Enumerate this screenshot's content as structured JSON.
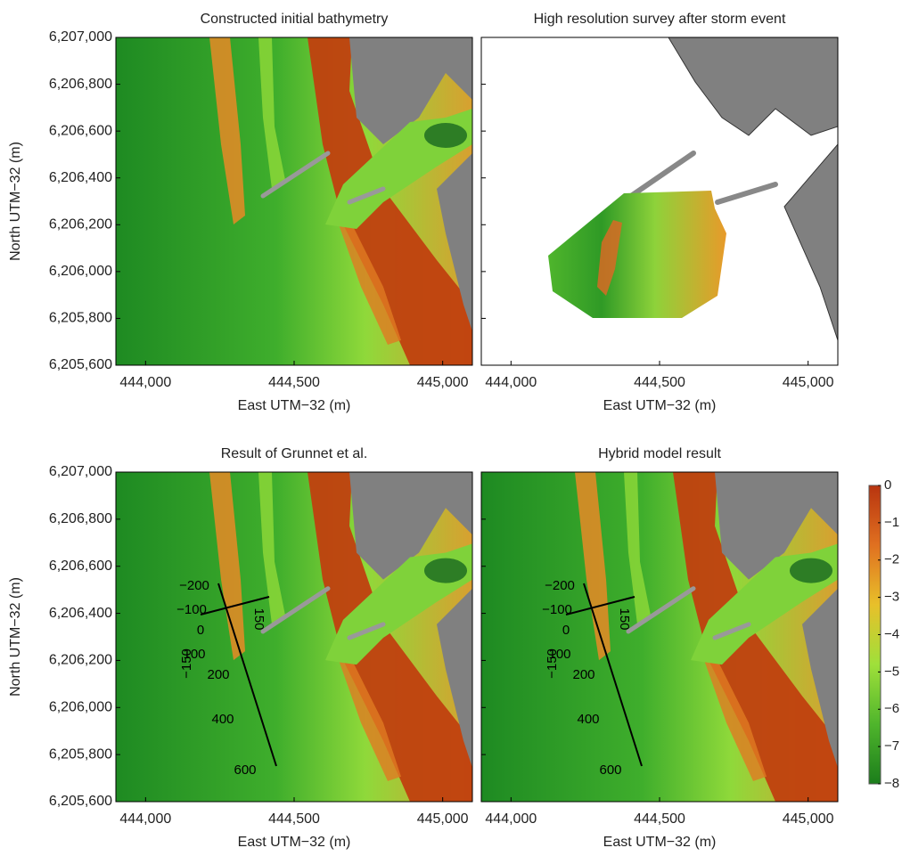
{
  "chart_data": [
    {
      "type": "map",
      "title": "Constructed initial bathymetry",
      "xlabel": "East UTM−32  (m)",
      "ylabel": "North UTM−32  (m)",
      "xlim": [
        443900,
        445100
      ],
      "ylim": [
        6205600,
        6207000
      ],
      "xticks": [
        {
          "value": 444000,
          "label": "444,000"
        },
        {
          "value": 444500,
          "label": "444,500"
        },
        {
          "value": 445000,
          "label": "445,000"
        }
      ],
      "yticks": [
        {
          "value": 6205600,
          "label": "6,205,600"
        },
        {
          "value": 6205800,
          "label": "6,205,800"
        },
        {
          "value": 6206000,
          "label": "6,206,000"
        },
        {
          "value": 6206200,
          "label": "6,206,200"
        },
        {
          "value": 6206400,
          "label": "6,206,400"
        },
        {
          "value": 6206600,
          "label": "6,206,600"
        },
        {
          "value": 6206800,
          "label": "6,206,800"
        },
        {
          "value": 6207000,
          "label": "6,207,000"
        }
      ]
    },
    {
      "type": "survey",
      "title": "High resolution survey after storm event",
      "xlabel": "East UTM−32  (m)",
      "xlim": [
        443900,
        445100
      ],
      "ylim": [
        6205600,
        6207000
      ],
      "xticks": [
        {
          "value": 444000,
          "label": "444,000"
        },
        {
          "value": 444500,
          "label": "444,500"
        },
        {
          "value": 445000,
          "label": "445,000"
        }
      ],
      "yticks": [
        6205600,
        6205800,
        6206000,
        6206200,
        6206400,
        6206600,
        6206800,
        6207000
      ]
    },
    {
      "type": "map",
      "title": "Result of Grunnet et al.",
      "xlabel": "East UTM−32  (m)",
      "ylabel": "North UTM−32  (m)",
      "xlim": [
        443900,
        445100
      ],
      "ylim": [
        6205600,
        6207000
      ],
      "xticks": [
        {
          "value": 444000,
          "label": "444,000"
        },
        {
          "value": 444500,
          "label": "444,500"
        },
        {
          "value": 445000,
          "label": "445,000"
        }
      ],
      "yticks": [
        {
          "value": 6205600,
          "label": "6,205,600"
        },
        {
          "value": 6205800,
          "label": "6,205,800"
        },
        {
          "value": 6206000,
          "label": "6,206,000"
        },
        {
          "value": 6206200,
          "label": "6,206,200"
        },
        {
          "value": 6206400,
          "label": "6,206,400"
        },
        {
          "value": 6206600,
          "label": "6,206,600"
        },
        {
          "value": 6206800,
          "label": "6,206,800"
        },
        {
          "value": 6207000,
          "label": "6,207,000"
        }
      ],
      "annotations": [
        "−200",
        "−100",
        "0",
        "100",
        "−150",
        "150",
        "200",
        "400",
        "600"
      ]
    },
    {
      "type": "map",
      "title": "Hybrid model result",
      "xlabel": "East UTM−32  (m)",
      "xlim": [
        443900,
        445100
      ],
      "ylim": [
        6205600,
        6207000
      ],
      "xticks": [
        {
          "value": 444000,
          "label": "444,000"
        },
        {
          "value": 444500,
          "label": "444,500"
        },
        {
          "value": 445000,
          "label": "445,000"
        }
      ],
      "yticks": [
        6205600,
        6205800,
        6206000,
        6206200,
        6206400,
        6206600,
        6206800,
        6207000
      ],
      "annotations": [
        "−200",
        "−100",
        "0",
        "100",
        "−150",
        "150",
        "200",
        "400",
        "600"
      ]
    }
  ],
  "colorbar": {
    "lim": [
      -8,
      0
    ],
    "colors": [
      "#1b7d1b",
      "#4fb52c",
      "#9fe03a",
      "#e8c02a",
      "#e07020",
      "#b8340f"
    ],
    "ticks": [
      {
        "value": 0,
        "label": "0"
      },
      {
        "value": -1,
        "label": "−1"
      },
      {
        "value": -2,
        "label": "−2"
      },
      {
        "value": -3,
        "label": "−3"
      },
      {
        "value": -4,
        "label": "−4"
      },
      {
        "value": -5,
        "label": "−5"
      },
      {
        "value": -6,
        "label": "−6"
      },
      {
        "value": -7,
        "label": "−7"
      },
      {
        "value": -8,
        "label": "−8"
      }
    ]
  }
}
